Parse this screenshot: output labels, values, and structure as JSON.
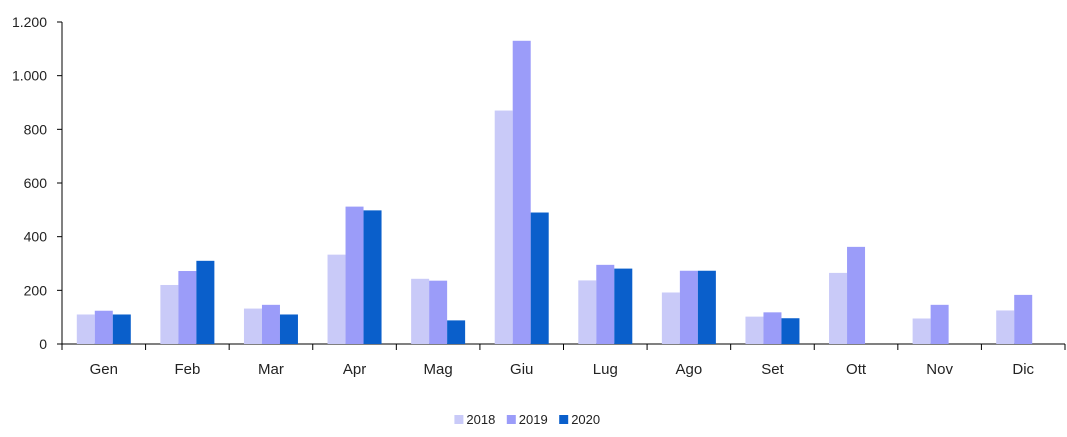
{
  "chart_data": {
    "type": "bar",
    "categories": [
      "Gen",
      "Feb",
      "Mar",
      "Apr",
      "Mag",
      "Giu",
      "Lug",
      "Ago",
      "Set",
      "Ott",
      "Nov",
      "Dic"
    ],
    "series": [
      {
        "name": "2018",
        "color": "#c9caf8",
        "values": [
          110,
          220,
          132,
          333,
          243,
          870,
          237,
          192,
          102,
          265,
          95,
          125
        ]
      },
      {
        "name": "2019",
        "color": "#9b9cf9",
        "values": [
          124,
          272,
          146,
          512,
          236,
          1130,
          295,
          273,
          118,
          362,
          146,
          183
        ]
      },
      {
        "name": "2020",
        "color": "#0a5fcb",
        "values": [
          110,
          310,
          110,
          498,
          88,
          490,
          281,
          273,
          96,
          null,
          null,
          null
        ]
      }
    ],
    "yticks": [
      0,
      200,
      400,
      600,
      800,
      1000,
      1200
    ],
    "ytick_labels": [
      "0",
      "200",
      "400",
      "600",
      "800",
      "1.000",
      "1.200"
    ],
    "ylim": [
      0,
      1200
    ],
    "grid": false,
    "legend_position": "bottom-center"
  }
}
